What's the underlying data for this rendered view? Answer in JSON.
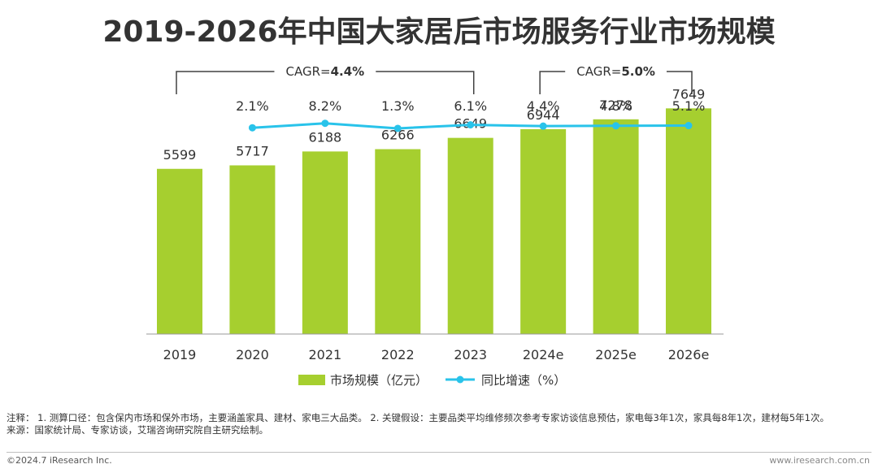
{
  "chart_data": {
    "type": "bar",
    "title": "2019-2026年中国大家居后市场服务行业市场规模",
    "categories": [
      "2019",
      "2020",
      "2021",
      "2022",
      "2023",
      "2024e",
      "2025e",
      "2026e"
    ],
    "series": [
      {
        "name": "市场规模（亿元）",
        "type": "bar",
        "color": "#a6cf2f",
        "values": [
          5599,
          5717,
          6188,
          6266,
          6649,
          6944,
          7278,
          7649
        ]
      },
      {
        "name": "同比增速（%）",
        "type": "line",
        "color": "#29c3ea",
        "values": [
          null,
          2.1,
          8.2,
          1.3,
          6.1,
          4.4,
          4.8,
          5.1
        ],
        "labels": [
          "",
          "2.1%",
          "8.2%",
          "1.3%",
          "6.1%",
          "4.4%",
          "4.8%",
          "5.1%"
        ]
      }
    ],
    "annotations": [
      {
        "text_prefix": "CAGR=",
        "text_value": "4.4%",
        "from": "2019",
        "to": "2023"
      },
      {
        "text_prefix": "CAGR=",
        "text_value": "5.0%",
        "from": "2024e",
        "to": "2026e"
      }
    ],
    "legend_position": "bottom",
    "grid": false
  },
  "footer": {
    "note_line1": "注释： 1. 测算口径：包含保内市场和保外市场，主要涵盖家具、建材、家电三大品类。 2. 关键假设：主要品类平均维修频次参考专家访谈信息预估，家电每3年1次，家具每8年1次，建材每5年1次。",
    "source": "来源：国家统计局、专家访谈，艾瑞咨询研究院自主研究绘制。",
    "copyright": "©2024.7 iResearch Inc.",
    "website": "www.iresearch.com.cn"
  }
}
